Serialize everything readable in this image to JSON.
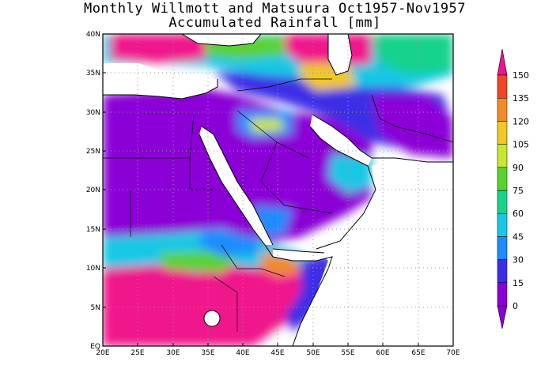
{
  "title_line1": "Monthly Willmott and Matsuura Oct1957-Nov1957",
  "title_line2": "Accumulated Rainfall [mm]",
  "lon_labels": [
    "20E",
    "25E",
    "30E",
    "35E",
    "40E",
    "45E",
    "50E",
    "55E",
    "60E",
    "65E",
    "70E"
  ],
  "lat_labels": [
    "EQ",
    "5N",
    "10N",
    "15N",
    "20N",
    "25N",
    "30N",
    "35N",
    "40N"
  ],
  "colorbar": {
    "labels": [
      "0",
      "15",
      "30",
      "45",
      "60",
      "75",
      "90",
      "105",
      "120",
      "135",
      "150"
    ],
    "colors": [
      "#8a00d6",
      "#3c2ee6",
      "#1e8cff",
      "#19c8e6",
      "#19d28c",
      "#5ad22d",
      "#c8e632",
      "#f0c828",
      "#f08c28",
      "#f04628",
      "#f0148c"
    ],
    "under_color": "#8a00d6",
    "over_color": "#f0148c"
  },
  "map_extent": {
    "lon": [
      20,
      70
    ],
    "lat": [
      0,
      40
    ]
  }
}
